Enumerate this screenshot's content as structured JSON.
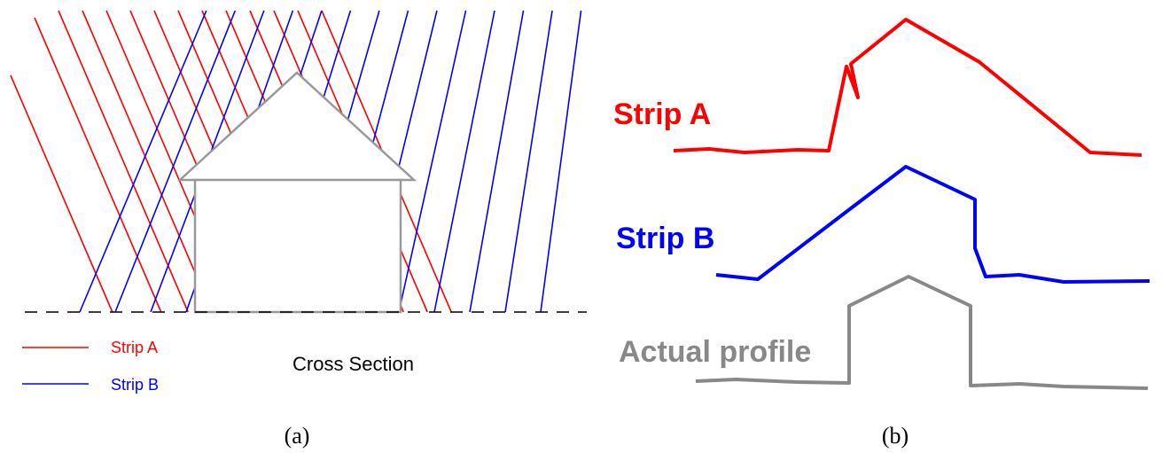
{
  "panels": [
    {
      "caption": "(a)",
      "legend": [
        "Strip A",
        "Strip B"
      ],
      "label": "Cross Section"
    },
    {
      "caption": "(b)",
      "profiles": [
        "Strip A",
        "Strip B",
        "Actual profile"
      ]
    }
  ]
}
